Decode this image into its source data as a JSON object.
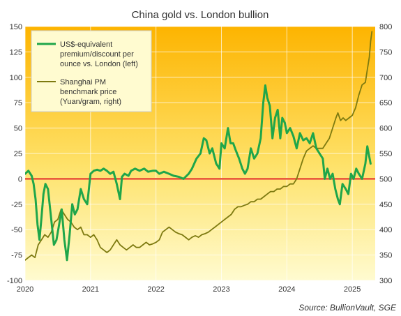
{
  "chart_data": {
    "type": "line",
    "title": "China gold vs. London bullion",
    "source_label": "Source:",
    "source_name": " BullionVault, SGE",
    "x_ticks": [
      "2020",
      "2021",
      "2022",
      "2023",
      "2024",
      "2025"
    ],
    "x_range": [
      2020.0,
      2025.35
    ],
    "y_left": {
      "range": [
        -100,
        150
      ],
      "ticks": [
        "-100",
        "-75",
        "-50",
        "-25",
        "0",
        "25",
        "50",
        "75",
        "100",
        "125",
        "150"
      ]
    },
    "y_right": {
      "range": [
        300,
        800
      ],
      "ticks": [
        "300",
        "350",
        "400",
        "450",
        "500",
        "550",
        "600",
        "650",
        "700",
        "750",
        "800"
      ]
    },
    "legend_position": "top-left",
    "grid": true,
    "zero_line_color": "#e8503a",
    "series": [
      {
        "name": "US$-equivalent premium/discount per ounce vs. London (left)",
        "legend_lines": [
          "US$-equivalent",
          "premium/discount per",
          "ounce vs. London (left)"
        ],
        "axis": "left",
        "color": "#1fa64a",
        "points": [
          [
            2020.0,
            5
          ],
          [
            2020.05,
            8
          ],
          [
            2020.1,
            3
          ],
          [
            2020.13,
            -5
          ],
          [
            2020.16,
            -20
          ],
          [
            2020.19,
            -45
          ],
          [
            2020.22,
            -60
          ],
          [
            2020.25,
            -38
          ],
          [
            2020.28,
            -15
          ],
          [
            2020.31,
            -5
          ],
          [
            2020.35,
            -10
          ],
          [
            2020.4,
            -40
          ],
          [
            2020.44,
            -65
          ],
          [
            2020.48,
            -60
          ],
          [
            2020.52,
            -45
          ],
          [
            2020.56,
            -30
          ],
          [
            2020.6,
            -60
          ],
          [
            2020.64,
            -80
          ],
          [
            2020.68,
            -55
          ],
          [
            2020.72,
            -25
          ],
          [
            2020.76,
            -35
          ],
          [
            2020.8,
            -30
          ],
          [
            2020.85,
            -10
          ],
          [
            2020.9,
            -20
          ],
          [
            2020.95,
            -25
          ],
          [
            2021.0,
            5
          ],
          [
            2021.05,
            8
          ],
          [
            2021.1,
            9
          ],
          [
            2021.15,
            8
          ],
          [
            2021.2,
            10
          ],
          [
            2021.25,
            8
          ],
          [
            2021.3,
            5
          ],
          [
            2021.35,
            7
          ],
          [
            2021.4,
            -5
          ],
          [
            2021.45,
            -20
          ],
          [
            2021.48,
            2
          ],
          [
            2021.52,
            5
          ],
          [
            2021.58,
            3
          ],
          [
            2021.62,
            8
          ],
          [
            2021.68,
            10
          ],
          [
            2021.75,
            8
          ],
          [
            2021.82,
            10
          ],
          [
            2021.88,
            7
          ],
          [
            2021.95,
            8
          ],
          [
            2022.0,
            8
          ],
          [
            2022.05,
            5
          ],
          [
            2022.12,
            7
          ],
          [
            2022.2,
            5
          ],
          [
            2022.27,
            3
          ],
          [
            2022.35,
            2
          ],
          [
            2022.42,
            0
          ],
          [
            2022.5,
            5
          ],
          [
            2022.55,
            10
          ],
          [
            2022.62,
            20
          ],
          [
            2022.68,
            25
          ],
          [
            2022.73,
            40
          ],
          [
            2022.77,
            38
          ],
          [
            2022.82,
            25
          ],
          [
            2022.86,
            30
          ],
          [
            2022.92,
            15
          ],
          [
            2022.97,
            10
          ],
          [
            2023.0,
            35
          ],
          [
            2023.05,
            30
          ],
          [
            2023.1,
            50
          ],
          [
            2023.14,
            35
          ],
          [
            2023.18,
            35
          ],
          [
            2023.22,
            28
          ],
          [
            2023.27,
            20
          ],
          [
            2023.32,
            10
          ],
          [
            2023.36,
            5
          ],
          [
            2023.4,
            10
          ],
          [
            2023.45,
            30
          ],
          [
            2023.5,
            20
          ],
          [
            2023.55,
            25
          ],
          [
            2023.6,
            40
          ],
          [
            2023.64,
            75
          ],
          [
            2023.67,
            92
          ],
          [
            2023.7,
            80
          ],
          [
            2023.74,
            72
          ],
          [
            2023.78,
            40
          ],
          [
            2023.82,
            60
          ],
          [
            2023.86,
            68
          ],
          [
            2023.9,
            40
          ],
          [
            2023.93,
            60
          ],
          [
            2023.97,
            55
          ],
          [
            2024.0,
            45
          ],
          [
            2024.05,
            50
          ],
          [
            2024.1,
            42
          ],
          [
            2024.15,
            30
          ],
          [
            2024.2,
            45
          ],
          [
            2024.25,
            38
          ],
          [
            2024.3,
            40
          ],
          [
            2024.35,
            35
          ],
          [
            2024.4,
            45
          ],
          [
            2024.45,
            30
          ],
          [
            2024.5,
            25
          ],
          [
            2024.55,
            20
          ],
          [
            2024.58,
            0
          ],
          [
            2024.62,
            10
          ],
          [
            2024.66,
            0
          ],
          [
            2024.7,
            5
          ],
          [
            2024.74,
            -10
          ],
          [
            2024.78,
            -20
          ],
          [
            2024.81,
            -25
          ],
          [
            2024.85,
            -5
          ],
          [
            2024.9,
            -10
          ],
          [
            2024.94,
            -15
          ],
          [
            2024.98,
            5
          ],
          [
            2025.02,
            0
          ],
          [
            2025.06,
            10
          ],
          [
            2025.1,
            5
          ],
          [
            2025.15,
            0
          ],
          [
            2025.2,
            15
          ],
          [
            2025.23,
            32
          ],
          [
            2025.25,
            25
          ],
          [
            2025.28,
            15
          ]
        ]
      },
      {
        "name": "Shanghai PM benchmark price (Yuan/gram, right)",
        "legend_lines": [
          "Shanghai PM",
          "benchmark price",
          "(Yuan/gram, right)"
        ],
        "axis": "right",
        "color": "#7d7a10",
        "points": [
          [
            2020.0,
            340
          ],
          [
            2020.05,
            345
          ],
          [
            2020.1,
            350
          ],
          [
            2020.15,
            345
          ],
          [
            2020.2,
            370
          ],
          [
            2020.25,
            380
          ],
          [
            2020.3,
            390
          ],
          [
            2020.35,
            385
          ],
          [
            2020.4,
            395
          ],
          [
            2020.45,
            415
          ],
          [
            2020.5,
            420
          ],
          [
            2020.55,
            440
          ],
          [
            2020.6,
            430
          ],
          [
            2020.65,
            420
          ],
          [
            2020.7,
            415
          ],
          [
            2020.75,
            405
          ],
          [
            2020.8,
            400
          ],
          [
            2020.85,
            405
          ],
          [
            2020.9,
            390
          ],
          [
            2020.95,
            390
          ],
          [
            2021.0,
            385
          ],
          [
            2021.05,
            390
          ],
          [
            2021.1,
            380
          ],
          [
            2021.15,
            365
          ],
          [
            2021.2,
            360
          ],
          [
            2021.25,
            355
          ],
          [
            2021.3,
            360
          ],
          [
            2021.35,
            370
          ],
          [
            2021.4,
            380
          ],
          [
            2021.45,
            370
          ],
          [
            2021.5,
            365
          ],
          [
            2021.55,
            360
          ],
          [
            2021.6,
            365
          ],
          [
            2021.65,
            370
          ],
          [
            2021.7,
            365
          ],
          [
            2021.75,
            365
          ],
          [
            2021.8,
            370
          ],
          [
            2021.85,
            375
          ],
          [
            2021.9,
            370
          ],
          [
            2021.95,
            372
          ],
          [
            2022.0,
            375
          ],
          [
            2022.05,
            380
          ],
          [
            2022.1,
            395
          ],
          [
            2022.15,
            400
          ],
          [
            2022.2,
            405
          ],
          [
            2022.25,
            400
          ],
          [
            2022.3,
            395
          ],
          [
            2022.35,
            392
          ],
          [
            2022.4,
            390
          ],
          [
            2022.45,
            385
          ],
          [
            2022.5,
            380
          ],
          [
            2022.55,
            385
          ],
          [
            2022.6,
            388
          ],
          [
            2022.65,
            385
          ],
          [
            2022.7,
            390
          ],
          [
            2022.75,
            392
          ],
          [
            2022.8,
            395
          ],
          [
            2022.85,
            400
          ],
          [
            2022.9,
            405
          ],
          [
            2022.95,
            410
          ],
          [
            2023.0,
            415
          ],
          [
            2023.05,
            420
          ],
          [
            2023.1,
            425
          ],
          [
            2023.15,
            430
          ],
          [
            2023.2,
            440
          ],
          [
            2023.25,
            445
          ],
          [
            2023.3,
            445
          ],
          [
            2023.35,
            448
          ],
          [
            2023.4,
            450
          ],
          [
            2023.45,
            455
          ],
          [
            2023.5,
            455
          ],
          [
            2023.55,
            460
          ],
          [
            2023.6,
            460
          ],
          [
            2023.65,
            465
          ],
          [
            2023.7,
            470
          ],
          [
            2023.75,
            475
          ],
          [
            2023.8,
            475
          ],
          [
            2023.85,
            480
          ],
          [
            2023.9,
            480
          ],
          [
            2023.95,
            485
          ],
          [
            2024.0,
            485
          ],
          [
            2024.05,
            490
          ],
          [
            2024.1,
            490
          ],
          [
            2024.15,
            500
          ],
          [
            2024.2,
            520
          ],
          [
            2024.25,
            540
          ],
          [
            2024.3,
            555
          ],
          [
            2024.35,
            560
          ],
          [
            2024.4,
            565
          ],
          [
            2024.45,
            560
          ],
          [
            2024.5,
            560
          ],
          [
            2024.55,
            560
          ],
          [
            2024.6,
            570
          ],
          [
            2024.65,
            580
          ],
          [
            2024.7,
            600
          ],
          [
            2024.75,
            620
          ],
          [
            2024.78,
            630
          ],
          [
            2024.82,
            615
          ],
          [
            2024.86,
            620
          ],
          [
            2024.9,
            615
          ],
          [
            2024.95,
            620
          ],
          [
            2025.0,
            625
          ],
          [
            2025.05,
            640
          ],
          [
            2025.1,
            665
          ],
          [
            2025.15,
            685
          ],
          [
            2025.2,
            690
          ],
          [
            2025.23,
            715
          ],
          [
            2025.26,
            740
          ],
          [
            2025.28,
            770
          ],
          [
            2025.3,
            790
          ]
        ]
      }
    ]
  }
}
